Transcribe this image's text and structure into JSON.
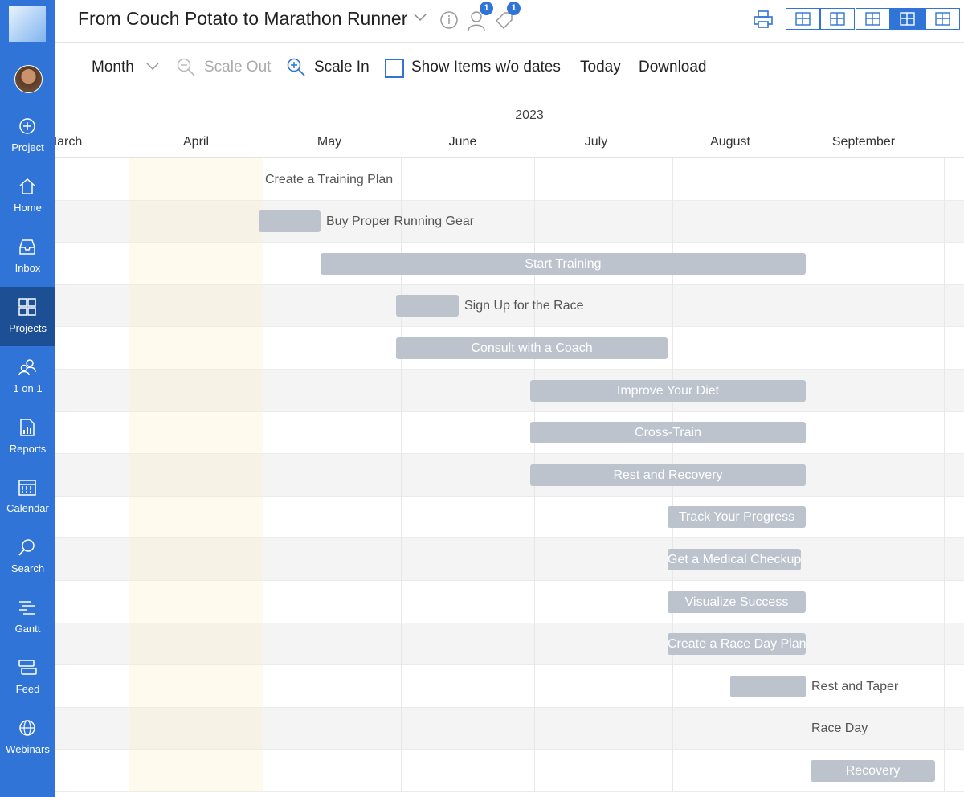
{
  "header": {
    "title": "From Couch Potato to Marathon Runner",
    "badges": [
      1,
      1
    ]
  },
  "sidebar": {
    "items": [
      "Project",
      "Home",
      "Inbox",
      "Projects",
      "1 on 1",
      "Reports",
      "Calendar",
      "Search",
      "Gantt",
      "Feed",
      "Webinars"
    ],
    "selected": "Projects"
  },
  "toolbar": {
    "scale": "Month",
    "scale_out": "Scale Out",
    "scale_in": "Scale In",
    "show_items": "Show Items w/o dates",
    "today": "Today",
    "download": "Download"
  },
  "timeline": {
    "year": "2023",
    "months": [
      "March",
      "April",
      "May",
      "June",
      "July",
      "August",
      "September"
    ],
    "tasks": [
      "Create a Training Plan",
      "Buy Proper Running Gear",
      "Start Training",
      "Sign Up for the Race",
      "Consult with a Coach",
      "Improve Your Diet",
      "Cross-Train",
      "Rest and Recovery",
      "Track Your Progress",
      "Get a Medical Checkup",
      "Visualize Success",
      "Create a Race Day Plan",
      "Rest and Taper",
      "Race Day",
      "Recovery"
    ]
  }
}
